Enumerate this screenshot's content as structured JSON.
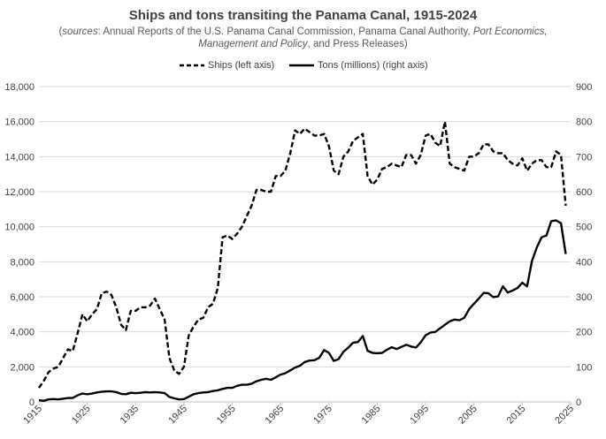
{
  "chart_data": {
    "type": "line",
    "title": "Ships and tons transiting the Panama Canal, 1915-2024",
    "subtitle_parts": [
      {
        "text": "(",
        "italic": false
      },
      {
        "text": "sources",
        "italic": true
      },
      {
        "text": ": Annual Reports of the U.S. Panama Canal Commission, Panama Canal Authority, ",
        "italic": false
      },
      {
        "text": "Port Economics, Management and Policy",
        "italic": true
      },
      {
        "text": ", and Press Releases)",
        "italic": false
      }
    ],
    "xlim": [
      1915,
      2025
    ],
    "x_ticks": [
      "1915",
      "1925",
      "1935",
      "1945",
      "1955",
      "1965",
      "1975",
      "1985",
      "1995",
      "2005",
      "2015",
      "2025"
    ],
    "y_left_lim": [
      0,
      18000
    ],
    "y_left_ticks": [
      "0",
      "2,000",
      "4,000",
      "6,000",
      "8,000",
      "10,000",
      "12,000",
      "14,000",
      "16,000",
      "18,000"
    ],
    "y_right_lim": [
      0,
      900
    ],
    "y_right_ticks": [
      "0",
      "100",
      "200",
      "300",
      "400",
      "500",
      "600",
      "700",
      "800",
      "900"
    ],
    "legend_position": "top",
    "series": [
      {
        "name": "Ships (left axis)",
        "axis": "left",
        "style": "dashed",
        "color": "#000000",
        "points": [
          [
            1915,
            800
          ],
          [
            1916,
            1200
          ],
          [
            1917,
            1700
          ],
          [
            1918,
            1900
          ],
          [
            1919,
            2000
          ],
          [
            1920,
            2500
          ],
          [
            1921,
            3000
          ],
          [
            1922,
            2900
          ],
          [
            1923,
            3900
          ],
          [
            1924,
            5000
          ],
          [
            1925,
            4600
          ],
          [
            1926,
            5000
          ],
          [
            1927,
            5300
          ],
          [
            1928,
            6200
          ],
          [
            1929,
            6300
          ],
          [
            1930,
            6100
          ],
          [
            1931,
            5400
          ],
          [
            1932,
            4400
          ],
          [
            1933,
            4100
          ],
          [
            1934,
            5200
          ],
          [
            1935,
            5200
          ],
          [
            1936,
            5400
          ],
          [
            1937,
            5400
          ],
          [
            1938,
            5500
          ],
          [
            1939,
            5900
          ],
          [
            1940,
            5300
          ],
          [
            1941,
            4700
          ],
          [
            1942,
            2500
          ],
          [
            1943,
            1800
          ],
          [
            1944,
            1600
          ],
          [
            1945,
            2000
          ],
          [
            1946,
            3800
          ],
          [
            1947,
            4300
          ],
          [
            1948,
            4700
          ],
          [
            1949,
            4800
          ],
          [
            1950,
            5400
          ],
          [
            1951,
            5600
          ],
          [
            1952,
            6500
          ],
          [
            1953,
            9400
          ],
          [
            1954,
            9500
          ],
          [
            1955,
            9300
          ],
          [
            1956,
            9600
          ],
          [
            1957,
            10000
          ],
          [
            1958,
            10600
          ],
          [
            1959,
            11200
          ],
          [
            1960,
            12100
          ],
          [
            1961,
            12100
          ],
          [
            1962,
            12000
          ],
          [
            1963,
            12000
          ],
          [
            1964,
            12900
          ],
          [
            1965,
            12900
          ],
          [
            1966,
            13200
          ],
          [
            1967,
            14200
          ],
          [
            1968,
            15500
          ],
          [
            1969,
            15300
          ],
          [
            1970,
            15600
          ],
          [
            1971,
            15400
          ],
          [
            1972,
            15200
          ],
          [
            1973,
            15200
          ],
          [
            1974,
            15300
          ],
          [
            1975,
            14600
          ],
          [
            1976,
            13200
          ],
          [
            1977,
            13000
          ],
          [
            1978,
            14000
          ],
          [
            1979,
            14300
          ],
          [
            1980,
            14900
          ],
          [
            1981,
            15100
          ],
          [
            1982,
            15300
          ],
          [
            1983,
            12900
          ],
          [
            1984,
            12400
          ],
          [
            1985,
            12700
          ],
          [
            1986,
            13300
          ],
          [
            1987,
            13400
          ],
          [
            1988,
            13600
          ],
          [
            1989,
            13500
          ],
          [
            1990,
            13400
          ],
          [
            1991,
            14100
          ],
          [
            1992,
            14100
          ],
          [
            1993,
            13600
          ],
          [
            1994,
            14100
          ],
          [
            1995,
            15200
          ],
          [
            1996,
            15300
          ],
          [
            1997,
            14800
          ],
          [
            1998,
            14600
          ],
          [
            1999,
            16000
          ],
          [
            2000,
            13600
          ],
          [
            2001,
            13400
          ],
          [
            2002,
            13300
          ],
          [
            2003,
            13200
          ],
          [
            2004,
            14000
          ],
          [
            2005,
            14000
          ],
          [
            2006,
            14200
          ],
          [
            2007,
            14700
          ],
          [
            2008,
            14700
          ],
          [
            2009,
            14300
          ],
          [
            2010,
            14200
          ],
          [
            2011,
            14200
          ],
          [
            2012,
            13800
          ],
          [
            2013,
            13600
          ],
          [
            2014,
            13500
          ],
          [
            2015,
            13900
          ],
          [
            2016,
            13200
          ],
          [
            2017,
            13600
          ],
          [
            2018,
            13800
          ],
          [
            2019,
            13800
          ],
          [
            2020,
            13400
          ],
          [
            2021,
            13400
          ],
          [
            2022,
            14300
          ],
          [
            2023,
            14100
          ],
          [
            2024,
            11200
          ]
        ]
      },
      {
        "name": "Tons (millions) (right axis)",
        "axis": "right",
        "style": "solid",
        "color": "#000000",
        "points": [
          [
            1915,
            5
          ],
          [
            1916,
            3
          ],
          [
            1917,
            7
          ],
          [
            1918,
            8
          ],
          [
            1919,
            7
          ],
          [
            1920,
            9
          ],
          [
            1921,
            11
          ],
          [
            1922,
            11
          ],
          [
            1923,
            19
          ],
          [
            1924,
            24
          ],
          [
            1925,
            22
          ],
          [
            1926,
            24
          ],
          [
            1927,
            27
          ],
          [
            1928,
            29
          ],
          [
            1929,
            30
          ],
          [
            1930,
            30
          ],
          [
            1931,
            28
          ],
          [
            1932,
            23
          ],
          [
            1933,
            22
          ],
          [
            1934,
            26
          ],
          [
            1935,
            25
          ],
          [
            1936,
            26
          ],
          [
            1937,
            28
          ],
          [
            1938,
            27
          ],
          [
            1939,
            28
          ],
          [
            1940,
            27
          ],
          [
            1941,
            25
          ],
          [
            1942,
            14
          ],
          [
            1943,
            10
          ],
          [
            1944,
            7
          ],
          [
            1945,
            8
          ],
          [
            1946,
            15
          ],
          [
            1947,
            22
          ],
          [
            1948,
            25
          ],
          [
            1949,
            27
          ],
          [
            1950,
            28
          ],
          [
            1951,
            31
          ],
          [
            1952,
            33
          ],
          [
            1953,
            37
          ],
          [
            1954,
            40
          ],
          [
            1955,
            40
          ],
          [
            1956,
            46
          ],
          [
            1957,
            49
          ],
          [
            1958,
            49
          ],
          [
            1959,
            52
          ],
          [
            1960,
            59
          ],
          [
            1961,
            63
          ],
          [
            1962,
            66
          ],
          [
            1963,
            63
          ],
          [
            1964,
            70
          ],
          [
            1965,
            78
          ],
          [
            1966,
            82
          ],
          [
            1967,
            90
          ],
          [
            1968,
            98
          ],
          [
            1969,
            103
          ],
          [
            1970,
            114
          ],
          [
            1971,
            118
          ],
          [
            1972,
            119
          ],
          [
            1973,
            126
          ],
          [
            1974,
            148
          ],
          [
            1975,
            140
          ],
          [
            1976,
            117
          ],
          [
            1977,
            122
          ],
          [
            1978,
            143
          ],
          [
            1979,
            155
          ],
          [
            1980,
            169
          ],
          [
            1981,
            171
          ],
          [
            1982,
            188
          ],
          [
            1983,
            146
          ],
          [
            1984,
            140
          ],
          [
            1985,
            139
          ],
          [
            1986,
            140
          ],
          [
            1987,
            149
          ],
          [
            1988,
            156
          ],
          [
            1989,
            151
          ],
          [
            1990,
            157
          ],
          [
            1991,
            163
          ],
          [
            1992,
            158
          ],
          [
            1993,
            155
          ],
          [
            1994,
            170
          ],
          [
            1995,
            190
          ],
          [
            1996,
            198
          ],
          [
            1997,
            200
          ],
          [
            1998,
            210
          ],
          [
            1999,
            220
          ],
          [
            2000,
            230
          ],
          [
            2001,
            235
          ],
          [
            2002,
            233
          ],
          [
            2003,
            240
          ],
          [
            2004,
            265
          ],
          [
            2005,
            280
          ],
          [
            2006,
            295
          ],
          [
            2007,
            311
          ],
          [
            2008,
            310
          ],
          [
            2009,
            299
          ],
          [
            2010,
            301
          ],
          [
            2011,
            330
          ],
          [
            2012,
            312
          ],
          [
            2013,
            318
          ],
          [
            2014,
            325
          ],
          [
            2015,
            340
          ],
          [
            2016,
            330
          ],
          [
            2017,
            402
          ],
          [
            2018,
            441
          ],
          [
            2019,
            470
          ],
          [
            2020,
            475
          ],
          [
            2021,
            516
          ],
          [
            2022,
            518
          ],
          [
            2023,
            510
          ],
          [
            2024,
            422
          ]
        ]
      }
    ]
  }
}
